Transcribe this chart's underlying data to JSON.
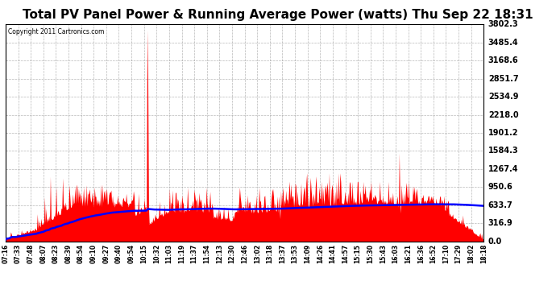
{
  "title": "Total PV Panel Power & Running Average Power (watts) Thu Sep 22 18:31",
  "copyright": "Copyright 2011 Cartronics.com",
  "background_color": "#ffffff",
  "plot_bg_color": "#ffffff",
  "ytick_labels": [
    "0.0",
    "316.9",
    "633.7",
    "950.6",
    "1267.4",
    "1584.3",
    "1901.2",
    "2218.0",
    "2534.9",
    "2851.7",
    "3168.6",
    "3485.4",
    "3802.3"
  ],
  "ytick_values": [
    0.0,
    316.9,
    633.7,
    950.6,
    1267.4,
    1584.3,
    1901.2,
    2218.0,
    2534.9,
    2851.7,
    3168.6,
    3485.4,
    3802.3
  ],
  "xtick_labels": [
    "07:16",
    "07:33",
    "07:48",
    "08:07",
    "08:23",
    "08:39",
    "08:54",
    "09:10",
    "09:27",
    "09:40",
    "09:54",
    "10:15",
    "10:32",
    "11:03",
    "11:19",
    "11:37",
    "11:54",
    "12:13",
    "12:30",
    "12:46",
    "13:02",
    "13:18",
    "13:37",
    "13:53",
    "14:09",
    "14:26",
    "14:41",
    "14:57",
    "15:15",
    "15:30",
    "15:43",
    "16:03",
    "16:21",
    "16:36",
    "16:52",
    "17:10",
    "17:29",
    "18:02",
    "18:18"
  ],
  "fill_color": "#ff0000",
  "line_color": "#0000ff",
  "grid_color": "#888888",
  "title_color": "#000000",
  "title_fontsize": 11,
  "ymax": 3802.3,
  "ymin": 0.0
}
